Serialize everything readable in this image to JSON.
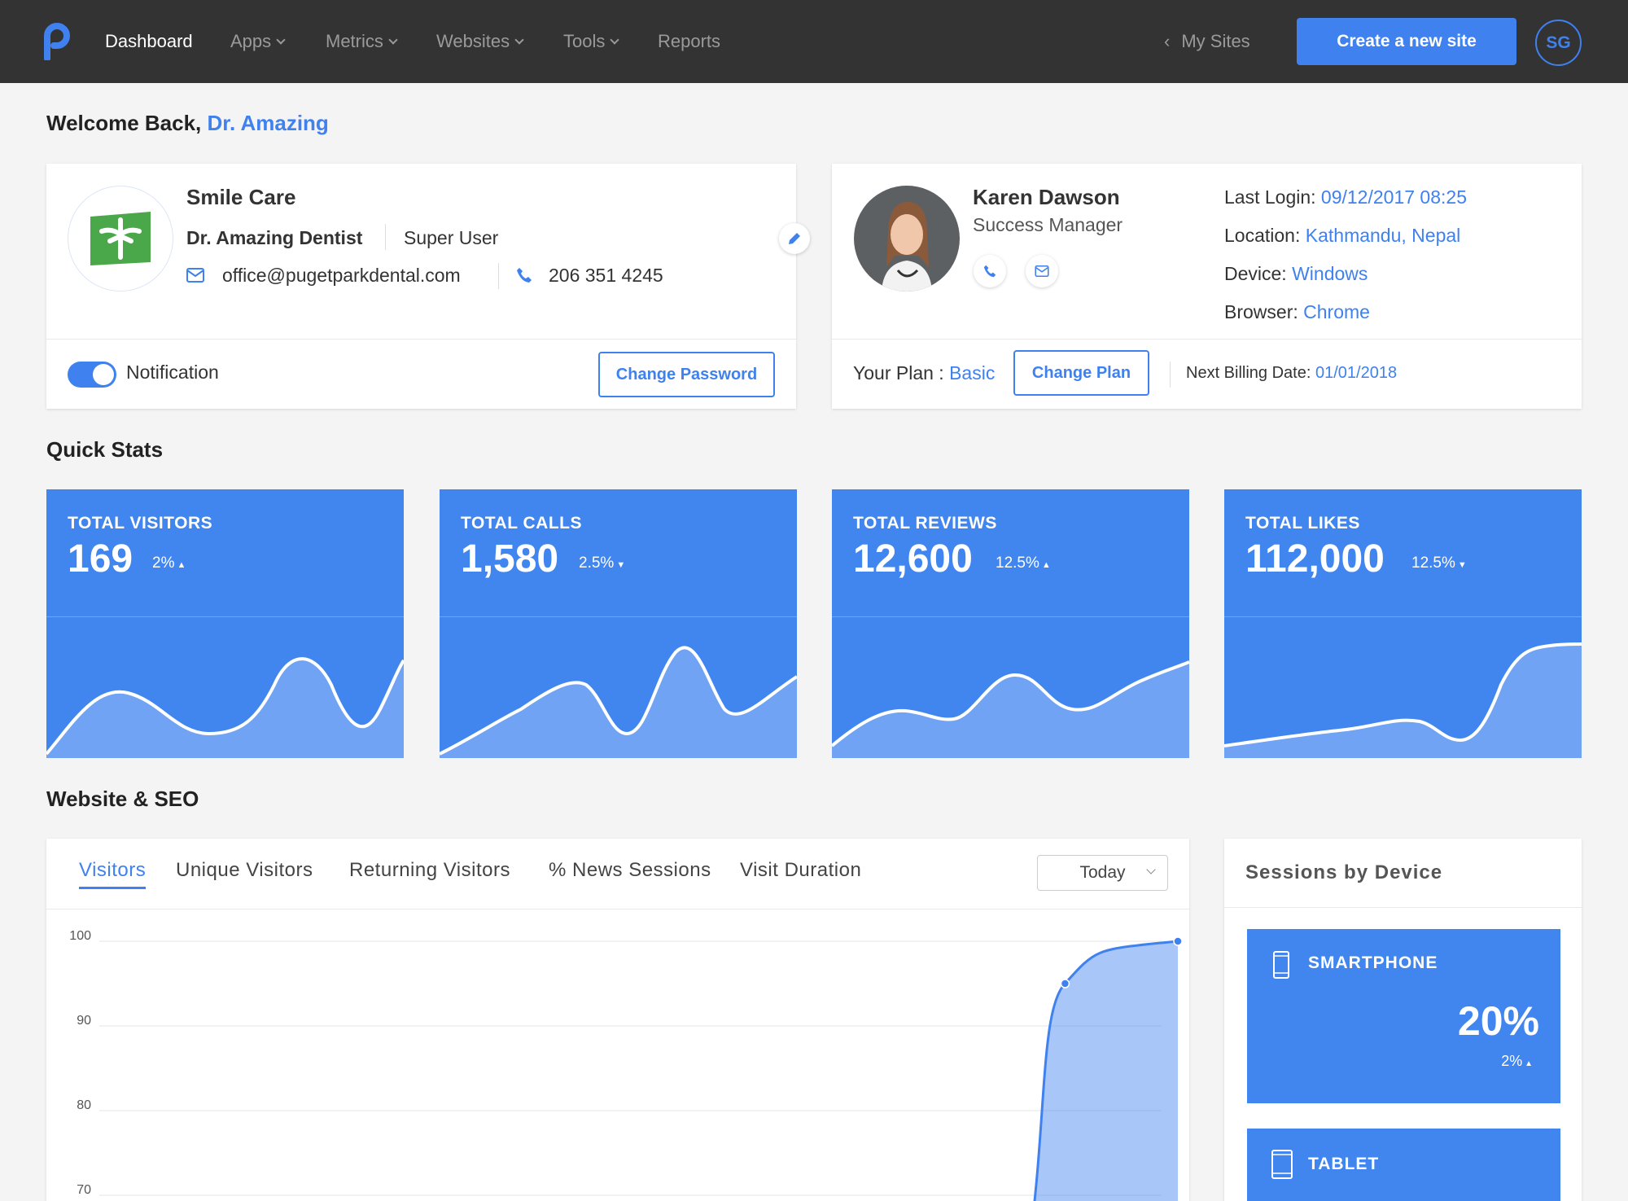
{
  "nav": {
    "items": [
      {
        "label": "Dashboard",
        "active": true
      },
      {
        "label": "Apps",
        "dropdown": true
      },
      {
        "label": "Metrics",
        "dropdown": true
      },
      {
        "label": "Websites",
        "dropdown": true
      },
      {
        "label": "Tools",
        "dropdown": true
      },
      {
        "label": "Reports"
      }
    ],
    "my_sites": "My Sites",
    "create_button": "Create a new site",
    "avatar_initials": "SG"
  },
  "welcome": {
    "prefix": "Welcome Back,",
    "name": "Dr. Amazing"
  },
  "profile": {
    "practice": "Smile Care",
    "doctor": "Dr. Amazing Dentist",
    "role": "Super User",
    "email": "office@pugetparkdental.com",
    "phone": "206 351 4245",
    "notification_label": "Notification",
    "notification_on": true,
    "change_password": "Change Password"
  },
  "manager": {
    "name": "Karen Dawson",
    "title": "Success Manager",
    "last_login_label": "Last Login:",
    "last_login": "09/12/2017 08:25",
    "location_label": "Location:",
    "location": "Kathmandu, Nepal",
    "device_label": "Device:",
    "device": "Windows",
    "browser_label": "Browser:",
    "browser": "Chrome",
    "plan_label": "Your Plan :",
    "plan": "Basic",
    "change_plan": "Change Plan",
    "billing_label": "Next Billing Date:",
    "billing_date": "01/01/2018"
  },
  "quick_stats": {
    "heading": "Quick Stats",
    "tiles": [
      {
        "label": "TOTAL VISITORS",
        "value": "169",
        "change": "2%",
        "direction": "up"
      },
      {
        "label": "TOTAL CALLS",
        "value": "1,580",
        "change": "2.5%",
        "direction": "down"
      },
      {
        "label": "TOTAL REVIEWS",
        "value": "12,600",
        "change": "12.5%",
        "direction": "up"
      },
      {
        "label": "TOTAL LIKES",
        "value": "112,000",
        "change": "12.5%",
        "direction": "down"
      }
    ]
  },
  "seo": {
    "heading": "Website & SEO",
    "tabs": [
      "Visitors",
      "Unique Visitors",
      "Returning Visitors",
      "% News Sessions",
      "Visit Duration"
    ],
    "active_tab": 0,
    "range": "Today"
  },
  "chart_data": {
    "type": "area",
    "y_ticks": [
      "100",
      "90",
      "80",
      "70"
    ],
    "ylim": [
      70,
      100
    ],
    "grid": true,
    "series": [
      {
        "values": [
          {
            "x": 0.86,
            "y": 65
          },
          {
            "x": 0.893,
            "y": 95
          },
          {
            "x": 1.0,
            "y": 100
          }
        ]
      }
    ],
    "color": "#3f81ee"
  },
  "sessions": {
    "heading": "Sessions by Device",
    "devices": [
      {
        "label": "SMARTPHONE",
        "value": "20%",
        "change": "2%",
        "direction": "up"
      },
      {
        "label": "TABLET"
      }
    ]
  },
  "colors": {
    "accent": "#3f81ee",
    "nav_bg": "#333333",
    "tile_bg": "#4185ef"
  }
}
